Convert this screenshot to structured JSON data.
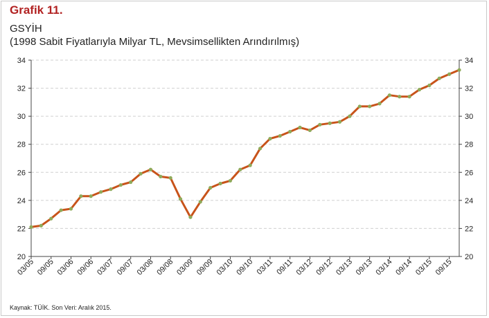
{
  "header": {
    "figure_label": "Grafik 11.",
    "title": "GSYİH",
    "subtitle": "(1998 Sabit Fiyatlarıyla Milyar TL, Mevsimsellikten Arındırılmış)"
  },
  "footer": {
    "source": "Kaynak: TÜİK. Son Veri: Aralık 2015."
  },
  "colors": {
    "line": "#c8531a",
    "marker": "#8faa5a",
    "grid": "#cfcfcf",
    "figure_label": "#b22222"
  },
  "chart_data": {
    "type": "line",
    "title": "GSYİH",
    "ylim": [
      20,
      34
    ],
    "yticks": [
      20,
      22,
      24,
      26,
      28,
      30,
      32,
      34
    ],
    "y_axis_both_sides": true,
    "grid": "horizontal-dashed",
    "x_tick_labels": [
      "03/05",
      "09/05",
      "03/06",
      "09/06",
      "03/07",
      "09/07",
      "03/08",
      "09/08",
      "03/09",
      "09/09",
      "03/10",
      "09/10",
      "03/11",
      "09/11",
      "03/12",
      "09/12",
      "03/13",
      "09/13",
      "03/14",
      "09/14",
      "03/15",
      "09/15"
    ],
    "x": [
      "2005Q1",
      "2005Q2",
      "2005Q3",
      "2005Q4",
      "2006Q1",
      "2006Q2",
      "2006Q3",
      "2006Q4",
      "2007Q1",
      "2007Q2",
      "2007Q3",
      "2007Q4",
      "2008Q1",
      "2008Q2",
      "2008Q3",
      "2008Q4",
      "2009Q1",
      "2009Q2",
      "2009Q3",
      "2009Q4",
      "2010Q1",
      "2010Q2",
      "2010Q3",
      "2010Q4",
      "2011Q1",
      "2011Q2",
      "2011Q3",
      "2011Q4",
      "2012Q1",
      "2012Q2",
      "2012Q3",
      "2012Q4",
      "2013Q1",
      "2013Q2",
      "2013Q3",
      "2013Q4",
      "2014Q1",
      "2014Q2",
      "2014Q3",
      "2014Q4",
      "2015Q1",
      "2015Q2",
      "2015Q3",
      "2015Q4"
    ],
    "series": [
      {
        "values": [
          22.1,
          22.2,
          22.7,
          23.3,
          23.4,
          24.3,
          24.3,
          24.6,
          24.8,
          25.1,
          25.3,
          25.9,
          26.2,
          25.7,
          25.6,
          24.1,
          22.8,
          23.9,
          24.9,
          25.2,
          25.4,
          26.2,
          26.5,
          27.7,
          28.4,
          28.6,
          28.9,
          29.2,
          29.0,
          29.4,
          29.5,
          29.6,
          30.0,
          30.7,
          30.7,
          30.9,
          31.5,
          31.4,
          31.4,
          31.9,
          32.2,
          32.7,
          33.0,
          33.3
        ]
      }
    ]
  }
}
